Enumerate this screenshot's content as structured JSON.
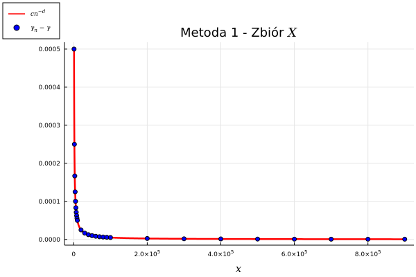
{
  "chart_data": {
    "type": "line+scatter",
    "title": "Metoda 1 - Zbiór X",
    "title_plain": "Metoda 1 - Zbiór ",
    "title_italic": "X",
    "xlabel": "x",
    "ylabel": "",
    "xlim": [
      -25000,
      925000
    ],
    "ylim": [
      -1.5e-05,
      0.000518
    ],
    "x_ticks": [
      {
        "value": 0,
        "label": "0"
      },
      {
        "value": 200000,
        "label": "2.0×10",
        "exp": "5"
      },
      {
        "value": 400000,
        "label": "4.0×10",
        "exp": "5"
      },
      {
        "value": 600000,
        "label": "6.0×10",
        "exp": "5"
      },
      {
        "value": 800000,
        "label": "8.0×10",
        "exp": "5"
      }
    ],
    "y_ticks": [
      {
        "value": 0,
        "label": "0.0000"
      },
      {
        "value": 0.0001,
        "label": "0.0001"
      },
      {
        "value": 0.0002,
        "label": "0.0002"
      },
      {
        "value": 0.0003,
        "label": "0.0003"
      },
      {
        "value": 0.0004,
        "label": "0.0004"
      },
      {
        "value": 0.0005,
        "label": "0.0005"
      }
    ],
    "grid": true,
    "legend_position": "top-left",
    "series": [
      {
        "name": "cn^{-d}",
        "legend_main": "cn",
        "legend_sup": "−d",
        "type": "line",
        "color": "#ff0000",
        "formula": "c/x",
        "c": 0.5
      },
      {
        "name": "γ_n − γ",
        "legend_main": "γ",
        "legend_sub": "n",
        "legend_rest": " − γ",
        "type": "scatter",
        "color": "#0000ff",
        "edge_color": "#000000",
        "x": [
          1000,
          2000,
          3000,
          4000,
          5000,
          6000,
          7000,
          8000,
          9000,
          10000,
          20000,
          30000,
          40000,
          50000,
          60000,
          70000,
          80000,
          90000,
          100000,
          200000,
          300000,
          400000,
          500000,
          600000,
          700000,
          800000,
          900000
        ],
        "y": [
          0.0005,
          0.00025,
          0.0001667,
          0.000125,
          0.0001,
          8.33e-05,
          7.14e-05,
          6.25e-05,
          5.56e-05,
          5e-05,
          2.5e-05,
          1.67e-05,
          1.25e-05,
          1e-05,
          8.3e-06,
          7.1e-06,
          6.3e-06,
          5.6e-06,
          5e-06,
          2.5e-06,
          1.7e-06,
          1.3e-06,
          1e-06,
          8e-07,
          7e-07,
          6e-07,
          6e-07
        ]
      }
    ]
  }
}
